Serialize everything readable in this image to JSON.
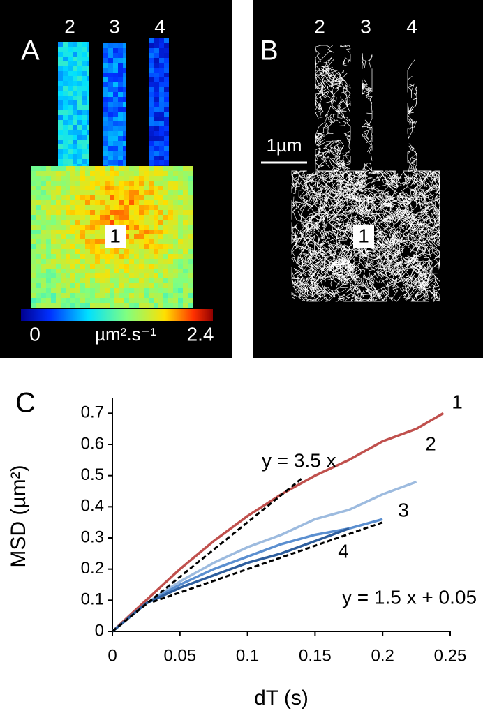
{
  "panel_a": {
    "label": "A",
    "region_labels": [
      "2",
      "3",
      "4",
      "1"
    ],
    "colorbar": {
      "min": 0,
      "unit": "µm².s⁻¹",
      "max": 2.4
    }
  },
  "panel_b": {
    "label": "B",
    "region_labels": [
      "2",
      "3",
      "4",
      "1"
    ],
    "scale_bar": "1µm"
  },
  "chart_data": {
    "type": "line",
    "panel_label": "C",
    "x_label": "dT (s)",
    "y_label": "MSD (µm²)",
    "x": [
      0,
      0.025,
      0.05,
      0.075,
      0.1,
      0.125,
      0.15,
      0.175,
      0.2,
      0.225,
      0.245
    ],
    "series": [
      {
        "name": "1",
        "color": "#c0504d",
        "values": [
          0,
          0.1,
          0.2,
          0.29,
          0.37,
          0.44,
          0.5,
          0.55,
          0.61,
          0.65,
          0.7
        ]
      },
      {
        "name": "2",
        "color": "#9dbbdf",
        "values": [
          0,
          0.09,
          0.16,
          0.22,
          0.27,
          0.31,
          0.36,
          0.39,
          0.44,
          0.48,
          null
        ]
      },
      {
        "name": "3",
        "color": "#5b8fd0",
        "values": [
          0,
          0.09,
          0.15,
          0.2,
          0.24,
          0.28,
          0.31,
          0.33,
          0.36,
          null,
          null
        ]
      },
      {
        "name": "4",
        "color": "#2f5f9e",
        "values": [
          0,
          0.09,
          0.14,
          0.18,
          0.22,
          0.25,
          0.29,
          0.33,
          null,
          null,
          null
        ]
      },
      {
        "name": "y = 3.5 x",
        "color": "#000000",
        "dashed": true,
        "x": [
          0,
          0.14
        ],
        "values": [
          0,
          0.49
        ]
      },
      {
        "name": "y = 1.5 x + 0.05",
        "color": "#000000",
        "dashed": true,
        "x": [
          0.03,
          0.2
        ],
        "values": [
          0.095,
          0.35
        ]
      }
    ],
    "xlim": [
      0,
      0.25
    ],
    "xticks": [
      0,
      0.05,
      0.1,
      0.15,
      0.2,
      0.25
    ],
    "ylim": [
      0,
      0.75
    ],
    "yticks": [
      0,
      0.1,
      0.2,
      0.3,
      0.4,
      0.5,
      0.6,
      0.7
    ],
    "grid": false
  }
}
